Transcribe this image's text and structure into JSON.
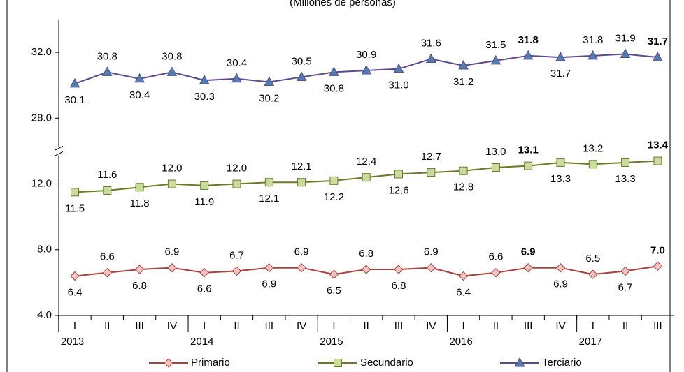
{
  "chart_data": {
    "type": "line",
    "subtitle": "(Millones de personas)",
    "categories": [
      "I",
      "II",
      "III",
      "IV",
      "I",
      "II",
      "III",
      "IV",
      "I",
      "II",
      "III",
      "IV",
      "I",
      "II",
      "III",
      "IV",
      "I",
      "II",
      "III"
    ],
    "year_groups": [
      {
        "label": "2013",
        "size": 4
      },
      {
        "label": "2014",
        "size": 4
      },
      {
        "label": "2015",
        "size": 4
      },
      {
        "label": "2016",
        "size": 4
      },
      {
        "label": "2017",
        "size": 3
      }
    ],
    "ylim": [
      4,
      34
    ],
    "axis_break": [
      14,
      26
    ],
    "yticks": [
      {
        "value": 4,
        "label": "4.0"
      },
      {
        "value": 8,
        "label": "8.0"
      },
      {
        "value": 12,
        "label": "12.0"
      },
      {
        "value": 28,
        "label": "28.0"
      },
      {
        "value": 32,
        "label": "32.0"
      }
    ],
    "legend": "bottom",
    "series": [
      {
        "name": "Primario",
        "color": "#a8423e",
        "marker_fill": "#f4c3bf",
        "marker": "diamond",
        "values": [
          6.4,
          6.6,
          6.8,
          6.9,
          6.6,
          6.7,
          6.9,
          6.9,
          6.5,
          6.8,
          6.8,
          6.9,
          6.4,
          6.6,
          6.9,
          6.9,
          6.5,
          6.7,
          7.0
        ],
        "value_labels": [
          "6.4",
          "6.6",
          "6.8",
          "6.9",
          "6.6",
          "6.7",
          "6.9",
          "6.9",
          "6.5",
          "6.8",
          "6.8",
          "6.9",
          "6.4",
          "6.6",
          "6.9",
          "6.9",
          "6.5",
          "6.7",
          "7.0"
        ]
      },
      {
        "name": "Secundario",
        "color": "#6b7a24",
        "marker_fill": "#c9dc9f",
        "marker": "square",
        "values": [
          11.5,
          11.6,
          11.8,
          12.0,
          11.9,
          12.0,
          12.1,
          12.1,
          12.2,
          12.4,
          12.6,
          12.7,
          12.8,
          13.0,
          13.1,
          13.3,
          13.2,
          13.3,
          13.4
        ],
        "value_labels": [
          "11.5",
          "11.6",
          "11.8",
          "12.0",
          "11.9",
          "12.0",
          "12.1",
          "12.1",
          "12.2",
          "12.4",
          "12.6",
          "12.7",
          "12.8",
          "13.0",
          "13.1",
          "13.3",
          "13.2",
          "13.3",
          "13.4"
        ]
      },
      {
        "name": "Terciario",
        "color": "#5c4a8c",
        "marker_fill": "#4f7fae",
        "marker": "triangle",
        "values": [
          30.1,
          30.8,
          30.4,
          30.8,
          30.3,
          30.4,
          30.2,
          30.5,
          30.8,
          30.9,
          31.0,
          31.6,
          31.2,
          31.5,
          31.8,
          31.7,
          31.8,
          31.9,
          31.7
        ],
        "value_labels": [
          "30.1",
          "30.8",
          "30.4",
          "30.8",
          "30.3",
          "30.4",
          "30.2",
          "30.5",
          "30.8",
          "30.9",
          "31.0",
          "31.6",
          "31.2",
          "31.5",
          "31.8",
          "31.7",
          "31.8",
          "31.9",
          "31.7"
        ]
      }
    ]
  }
}
